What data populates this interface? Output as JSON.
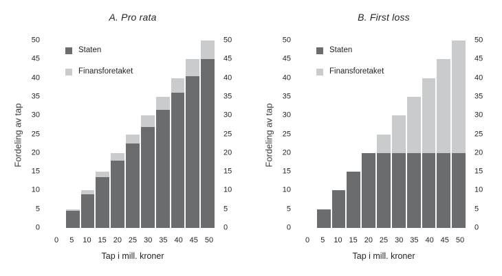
{
  "figure": {
    "background": "#ffffff",
    "text_color": "#231f20"
  },
  "chart_data": [
    {
      "type": "bar",
      "stacked": true,
      "title": "A. Pro rata",
      "xlabel": "Tap i mill. kroner",
      "ylabel": "Fordeling av tap",
      "categories": [
        5,
        10,
        15,
        20,
        25,
        30,
        35,
        40,
        45,
        50
      ],
      "x_ticks": [
        0,
        5,
        10,
        15,
        20,
        25,
        30,
        35,
        40,
        45,
        50
      ],
      "y_ticks": [
        0,
        5,
        10,
        15,
        20,
        25,
        30,
        35,
        40,
        45,
        50
      ],
      "ylim": [
        0,
        50
      ],
      "grid": false,
      "dual_y_axis": true,
      "legend_position": "top-left",
      "series": [
        {
          "name": "Staten",
          "color": "#6b6c6e",
          "values": [
            4.5,
            9,
            13.5,
            18,
            22.5,
            27,
            31.5,
            36,
            40.5,
            45
          ]
        },
        {
          "name": "Finansforetaket",
          "color": "#cacbcd",
          "values": [
            0.5,
            1,
            1.5,
            2,
            2.5,
            3,
            3.5,
            4,
            4.5,
            5
          ]
        }
      ]
    },
    {
      "type": "bar",
      "stacked": true,
      "title": "B. First loss",
      "xlabel": "Tap i mill. kroner",
      "ylabel": "Fordeling av tap",
      "categories": [
        5,
        10,
        15,
        20,
        25,
        30,
        35,
        40,
        45,
        50
      ],
      "x_ticks": [
        0,
        5,
        10,
        15,
        20,
        25,
        30,
        35,
        40,
        45,
        50
      ],
      "y_ticks": [
        0,
        5,
        10,
        15,
        20,
        25,
        30,
        35,
        40,
        45,
        50
      ],
      "ylim": [
        0,
        50
      ],
      "grid": false,
      "dual_y_axis": true,
      "legend_position": "top-left",
      "series": [
        {
          "name": "Staten",
          "color": "#6b6c6e",
          "values": [
            5,
            10,
            15,
            20,
            20,
            20,
            20,
            20,
            20,
            20
          ]
        },
        {
          "name": "Finansforetaket",
          "color": "#cacbcd",
          "values": [
            0,
            0,
            0,
            0,
            5,
            10,
            15,
            20,
            25,
            30
          ]
        }
      ]
    }
  ]
}
